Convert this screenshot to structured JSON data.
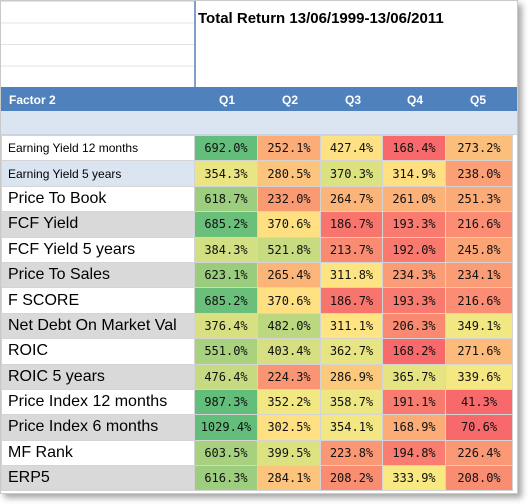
{
  "title": "Total Return 13/06/1999-13/06/2011",
  "header": {
    "factor_label": "Factor 2",
    "quintiles": [
      "Q1",
      "Q2",
      "Q3",
      "Q4",
      "Q5"
    ]
  },
  "rows": [
    {
      "label": "Earning Yield 12 months",
      "values": [
        "692.0%",
        "252.1%",
        "427.4%",
        "168.4%",
        "273.2%"
      ],
      "colors": [
        "#63be7b",
        "#fbac77",
        "#fee182",
        "#f8696b",
        "#fcbf7b"
      ]
    },
    {
      "label": "Earning Yield 5 years",
      "values": [
        "354.3%",
        "280.5%",
        "370.3%",
        "314.9%",
        "238.0%"
      ],
      "colors": [
        "#e9e583",
        "#fcc47c",
        "#dde281",
        "#fedf81",
        "#fba076"
      ]
    },
    {
      "label": "Price To Book",
      "values": [
        "618.7%",
        "232.0%",
        "264.7%",
        "261.0%",
        "251.3%"
      ],
      "colors": [
        "#9dcd7e",
        "#fa9a73",
        "#fbb479",
        "#fbb178",
        "#fbab77"
      ]
    },
    {
      "label": "FCF Yield",
      "values": [
        "685.2%",
        "370.6%",
        "186.7%",
        "193.3%",
        "216.6%"
      ],
      "colors": [
        "#6ac07b",
        "#fee082",
        "#f8756e",
        "#f97b70",
        "#fa8d73"
      ]
    },
    {
      "label": "FCF Yield 5 years",
      "values": [
        "384.3%",
        "521.8%",
        "213.7%",
        "192.0%",
        "245.8%"
      ],
      "colors": [
        "#d2df82",
        "#c7db80",
        "#f98b72",
        "#f9796f",
        "#fba576"
      ]
    },
    {
      "label": "Price To Sales",
      "values": [
        "623.1%",
        "265.4%",
        "311.8%",
        "234.3%",
        "234.1%"
      ],
      "colors": [
        "#9acc7e",
        "#fbb579",
        "#fee382",
        "#fa9c75",
        "#fa9c75"
      ]
    },
    {
      "label": "F SCORE",
      "values": [
        "685.2%",
        "370.6%",
        "186.7%",
        "193.3%",
        "216.6%"
      ],
      "colors": [
        "#6ac07b",
        "#fee082",
        "#f8756e",
        "#f97b70",
        "#fa8d73"
      ]
    },
    {
      "label": "Net Debt On Market Val",
      "values": [
        "376.4%",
        "482.0%",
        "311.1%",
        "206.3%",
        "349.1%"
      ],
      "colors": [
        "#d8e081",
        "#bbd780",
        "#fee482",
        "#f98970",
        "#f1e783"
      ]
    },
    {
      "label": "ROIC",
      "values": [
        "551.0%",
        "403.4%",
        "362.7%",
        "168.2%",
        "271.6%"
      ],
      "colors": [
        "#a9d27f",
        "#d6df81",
        "#e6e483",
        "#f8696b",
        "#fcbb7a"
      ]
    },
    {
      "label": "ROIC 5 years",
      "values": [
        "476.4%",
        "224.3%",
        "286.9%",
        "365.7%",
        "339.6%"
      ],
      "colors": [
        "#c6db81",
        "#fa9574",
        "#fcc87c",
        "#e5e382",
        "#f5e883"
      ]
    },
    {
      "label": "Price Index 12 months",
      "values": [
        "987.3%",
        "352.2%",
        "358.7%",
        "191.1%",
        "41.3%"
      ],
      "colors": [
        "#63be7b",
        "#f1e783",
        "#ece684",
        "#f97b70",
        "#f8696b"
      ]
    },
    {
      "label": "Price Index 6 months",
      "values": [
        "1029.4%",
        "302.5%",
        "354.1%",
        "168.9%",
        "70.6%"
      ],
      "colors": [
        "#63be7b",
        "#fedf81",
        "#f3e783",
        "#fbac77",
        "#f8696b"
      ]
    },
    {
      "label": "MF Rank",
      "values": [
        "603.5%",
        "399.5%",
        "223.8%",
        "194.8%",
        "226.4%"
      ],
      "colors": [
        "#a7d17f",
        "#dde281",
        "#fa9774",
        "#f97d70",
        "#fa9875"
      ]
    },
    {
      "label": "ERP5",
      "values": [
        "616.3%",
        "284.1%",
        "208.2%",
        "333.9%",
        "208.0%"
      ],
      "colors": [
        "#9dcd7e",
        "#fcc47c",
        "#f98d72",
        "#f8e983",
        "#f98d72"
      ]
    }
  ]
}
